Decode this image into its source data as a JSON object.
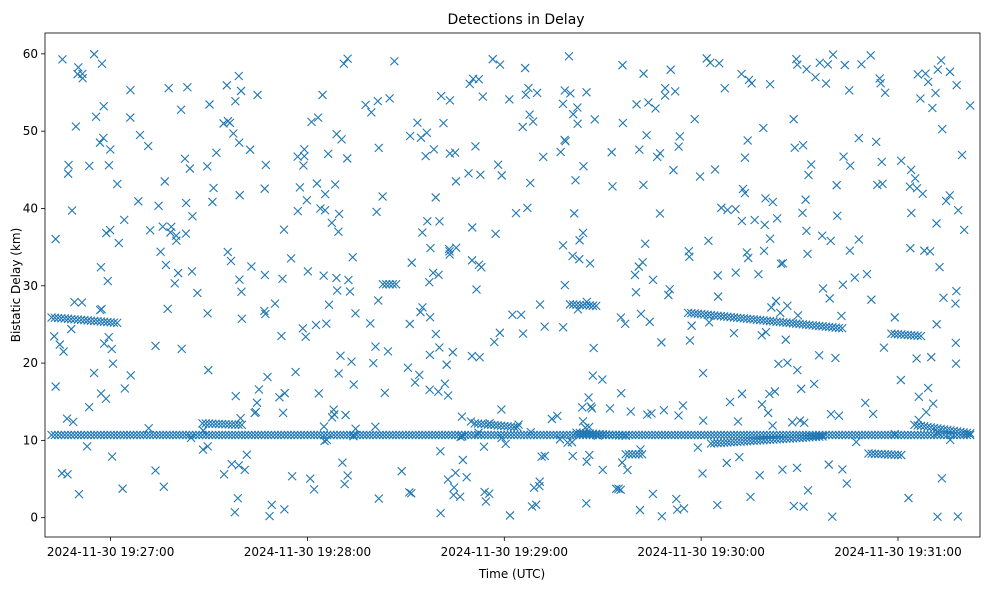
{
  "chart_data": {
    "type": "scatter",
    "title": "Detections in Delay",
    "xlabel": "Time (UTC)",
    "ylabel": "Bistatic Delay (km)",
    "marker": "x",
    "color": "#1f77b4",
    "grid": false,
    "legend": "none",
    "x_ticks": [
      "2024-11-30 19:27:00",
      "2024-11-30 19:28:00",
      "2024-11-30 19:29:00",
      "2024-11-30 19:30:00",
      "2024-11-30 19:31:00"
    ],
    "x_tick_seconds": [
      0,
      60,
      120,
      180,
      240
    ],
    "xlim_seconds": [
      -20,
      265
    ],
    "y_ticks": [
      0,
      10,
      20,
      30,
      40,
      50,
      60
    ],
    "ylim": [
      -2.5,
      62.7
    ],
    "tracks": [
      {
        "t_start": -18,
        "t_end": 262,
        "y_start": 10.7,
        "y_end": 10.7
      },
      {
        "t_start": -18,
        "t_end": 2,
        "y_start": 25.9,
        "y_end": 25.2
      },
      {
        "t_start": 28,
        "t_end": 40,
        "y_start": 12.2,
        "y_end": 12.0
      },
      {
        "t_start": 83,
        "t_end": 87,
        "y_start": 30.2,
        "y_end": 30.2
      },
      {
        "t_start": 111,
        "t_end": 124,
        "y_start": 12.2,
        "y_end": 11.7
      },
      {
        "t_start": 140,
        "t_end": 148,
        "y_start": 27.6,
        "y_end": 27.4
      },
      {
        "t_start": 142,
        "t_end": 157,
        "y_start": 11.0,
        "y_end": 10.6
      },
      {
        "t_start": 157,
        "t_end": 162,
        "y_start": 8.2,
        "y_end": 8.2
      },
      {
        "t_start": 176,
        "t_end": 223,
        "y_start": 26.5,
        "y_end": 24.5
      },
      {
        "t_start": 183,
        "t_end": 217,
        "y_start": 9.6,
        "y_end": 10.5
      },
      {
        "t_start": 231,
        "t_end": 241,
        "y_start": 8.3,
        "y_end": 8.1
      },
      {
        "t_start": 238,
        "t_end": 247,
        "y_start": 23.8,
        "y_end": 23.5
      },
      {
        "t_start": 245,
        "t_end": 262,
        "y_start": 12.0,
        "y_end": 10.9
      }
    ],
    "noise": {
      "count": 620,
      "y_range": [
        0,
        60
      ],
      "seed": 20241130
    }
  }
}
